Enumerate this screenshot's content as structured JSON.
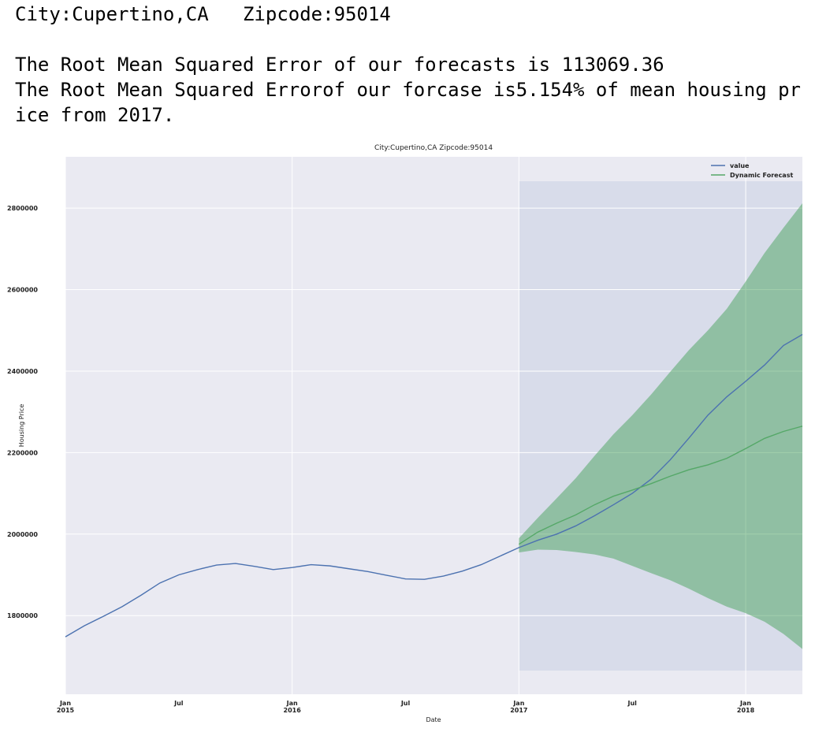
{
  "header": {
    "location": "City:Cupertino,CA   Zipcode:95014",
    "lines": [
      "The Root Mean Squared Error of our forecasts is 113069.36",
      "The Root Mean Squared Errorof our forcase is5.154% of mean housing price from 2017."
    ]
  },
  "chart_data": {
    "type": "line",
    "title": "City:Cupertino,CA   Zipcode:95014",
    "x_label": "Date",
    "y_label": "Housing Price",
    "x": [
      "2015-01",
      "2015-02",
      "2015-03",
      "2015-04",
      "2015-05",
      "2015-06",
      "2015-07",
      "2015-08",
      "2015-09",
      "2015-10",
      "2015-11",
      "2015-12",
      "2016-01",
      "2016-02",
      "2016-03",
      "2016-04",
      "2016-05",
      "2016-06",
      "2016-07",
      "2016-08",
      "2016-09",
      "2016-10",
      "2016-11",
      "2016-12",
      "2017-01",
      "2017-02",
      "2017-03",
      "2017-04",
      "2017-05",
      "2017-06",
      "2017-07",
      "2017-08",
      "2017-09",
      "2017-10",
      "2017-11",
      "2017-12",
      "2018-01",
      "2018-02",
      "2018-03",
      "2018-04"
    ],
    "series": [
      {
        "name": "value",
        "color": "#4c72b0",
        "values": [
          1748000,
          1775000,
          1798000,
          1822000,
          1850000,
          1880000,
          1900000,
          1913000,
          1924000,
          1928000,
          1921000,
          1913000,
          1918000,
          1925000,
          1922000,
          1915000,
          1908000,
          1899000,
          1890000,
          1889000,
          1897000,
          1909000,
          1925000,
          1946000,
          1967000,
          1985000,
          2000000,
          2020000,
          2045000,
          2072000,
          2100000,
          2135000,
          2182000,
          2236000,
          2292000,
          2337000,
          2375000,
          2415000,
          2463000,
          2490000
        ]
      },
      {
        "name": "Dynamic Forecast",
        "color": "#55a868",
        "values": [
          null,
          null,
          null,
          null,
          null,
          null,
          null,
          null,
          null,
          null,
          null,
          null,
          null,
          null,
          null,
          null,
          null,
          null,
          null,
          null,
          null,
          null,
          null,
          null,
          1975000,
          2005000,
          2027000,
          2047000,
          2072000,
          2093000,
          2108000,
          2124000,
          2142000,
          2158000,
          2170000,
          2186000,
          2210000,
          2235000,
          2252000,
          2265000
        ]
      }
    ],
    "band": {
      "color": "#55a868",
      "upper": [
        null,
        null,
        null,
        null,
        null,
        null,
        null,
        null,
        null,
        null,
        null,
        null,
        null,
        null,
        null,
        null,
        null,
        null,
        null,
        null,
        null,
        null,
        null,
        null,
        1990000,
        2040000,
        2088000,
        2137000,
        2192000,
        2245000,
        2292000,
        2343000,
        2398000,
        2452000,
        2500000,
        2553000,
        2620000,
        2690000,
        2752000,
        2812000
      ],
      "lower": [
        null,
        null,
        null,
        null,
        null,
        null,
        null,
        null,
        null,
        null,
        null,
        null,
        null,
        null,
        null,
        null,
        null,
        null,
        null,
        null,
        null,
        null,
        null,
        null,
        1955000,
        1962000,
        1961000,
        1956000,
        1950000,
        1940000,
        1922000,
        1904000,
        1887000,
        1866000,
        1843000,
        1822000,
        1806000,
        1785000,
        1755000,
        1718000
      ]
    },
    "forecast_region": {
      "x_start": "2017-01",
      "y_range": [
        1665000,
        2866000
      ],
      "color": "#d8dcea"
    },
    "xlim": [
      "2015-01",
      "2018-04"
    ],
    "xticks": [
      {
        "value": "2015-01",
        "label": "Jan 2015"
      },
      {
        "value": "2016-01",
        "label": "Jan 2016"
      },
      {
        "value": "2017-01",
        "label": "Jan 2017"
      },
      {
        "value": "2018-01",
        "label": "Jan 2018"
      }
    ],
    "xminorticks": [
      {
        "value": "2015-07",
        "label": "Jul"
      },
      {
        "value": "2016-07",
        "label": "Jul"
      },
      {
        "value": "2017-07",
        "label": "Jul"
      }
    ],
    "ylim": [
      1607000,
      2926000
    ],
    "yticks": [
      1800000,
      2000000,
      2200000,
      2400000,
      2600000,
      2800000
    ],
    "grid": true,
    "legend": "upper right"
  }
}
